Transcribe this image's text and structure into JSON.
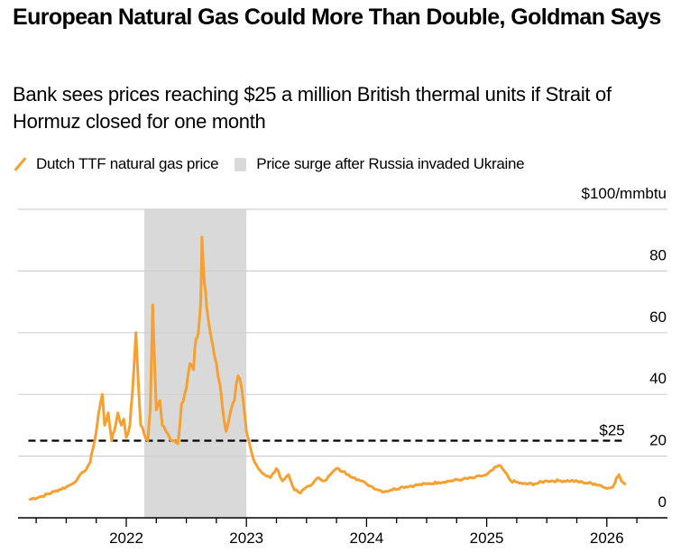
{
  "header": {
    "title": "European Natural Gas Could More Than Double, Goldman Says",
    "subtitle": "Bank sees prices reaching $25 a million British thermal units if Strait of Hormuz closed for one month"
  },
  "legend": {
    "items": [
      {
        "label": "Dutch TTF natural gas price",
        "icon": "orange-line-icon",
        "color": "#f5a030"
      },
      {
        "label": "Price surge after Russia invaded Ukraine",
        "icon": "gray-box-icon",
        "color": "#d9d9d9"
      }
    ]
  },
  "chart_data": {
    "type": "line",
    "title": "European Natural Gas Could More Than Double, Goldman Says",
    "subtitle": "Bank sees prices reaching $25 a million British thermal units if Strait of Hormuz closed for one month",
    "xlabel": "",
    "ylabel": "$/mmbtu",
    "y_unit_label": "$100/mmbtu",
    "xlim": [
      2021.15,
      2026.5
    ],
    "ylim": [
      0,
      100
    ],
    "yticks": [
      0,
      20,
      40,
      60,
      80,
      100
    ],
    "ytick_labels": [
      "0",
      "20",
      "40",
      "60",
      "80",
      "$100/mmbtu"
    ],
    "xticks": [
      2022,
      2023,
      2024,
      2025,
      2026
    ],
    "xtick_labels": [
      "2022",
      "2023",
      "2024",
      "2025",
      "2026"
    ],
    "minor_xticks_per_year": 4,
    "grid": "horizontal",
    "legend_position": "top-left",
    "shaded_region": {
      "label": "Price surge after Russia invaded Ukraine",
      "x_start": 2022.15,
      "x_end": 2023.0,
      "color": "#d9d9d9"
    },
    "reference_line": {
      "label": "$25",
      "value": 25,
      "x_start": 2021.2,
      "x_end": 2026.15,
      "style": "dashed",
      "color": "#000000"
    },
    "series": [
      {
        "name": "Dutch TTF natural gas price",
        "color": "#f5a030",
        "x": [
          2021.2,
          2021.3,
          2021.4,
          2021.5,
          2021.55,
          2021.6,
          2021.65,
          2021.7,
          2021.72,
          2021.75,
          2021.77,
          2021.8,
          2021.82,
          2021.85,
          2021.88,
          2021.9,
          2021.93,
          2021.96,
          2021.98,
          2022.0,
          2022.03,
          2022.05,
          2022.08,
          2022.12,
          2022.15,
          2022.18,
          2022.2,
          2022.22,
          2022.25,
          2022.28,
          2022.3,
          2022.33,
          2022.36,
          2022.4,
          2022.43,
          2022.46,
          2022.5,
          2022.53,
          2022.56,
          2022.58,
          2022.6,
          2022.62,
          2022.63,
          2022.65,
          2022.67,
          2022.7,
          2022.72,
          2022.75,
          2022.78,
          2022.8,
          2022.83,
          2022.86,
          2022.9,
          2022.93,
          2022.96,
          2023.0,
          2023.05,
          2023.1,
          2023.15,
          2023.2,
          2023.25,
          2023.3,
          2023.35,
          2023.4,
          2023.45,
          2023.5,
          2023.55,
          2023.6,
          2023.65,
          2023.7,
          2023.75,
          2023.8,
          2023.85,
          2023.9,
          2023.95,
          2024.0,
          2024.05,
          2024.1,
          2024.15,
          2024.2,
          2024.3,
          2024.4,
          2024.5,
          2024.6,
          2024.7,
          2024.8,
          2024.9,
          2024.95,
          2025.0,
          2025.05,
          2025.1,
          2025.15,
          2025.2,
          2025.3,
          2025.4,
          2025.5,
          2025.6,
          2025.7,
          2025.8,
          2025.9,
          2025.95,
          2026.0,
          2026.05,
          2026.08,
          2026.1,
          2026.12,
          2026.15
        ],
        "values": [
          6,
          7,
          8.5,
          10,
          11,
          13,
          15,
          18,
          22,
          28,
          34,
          40,
          30,
          34,
          25,
          28,
          34,
          30,
          32,
          26,
          30,
          40,
          60,
          30,
          27,
          25,
          35,
          69,
          35,
          38,
          30,
          28,
          26,
          25,
          24,
          37,
          42,
          50,
          48,
          58,
          60,
          70,
          91,
          76,
          68,
          60,
          56,
          50,
          43,
          36,
          28,
          33,
          38,
          46,
          42,
          28,
          20,
          16,
          14,
          13,
          16,
          12,
          14,
          9,
          8,
          10,
          11,
          13,
          12,
          14,
          16,
          15,
          14,
          13,
          12,
          11,
          10,
          9,
          8.5,
          9,
          10,
          10.5,
          11,
          11.5,
          12,
          12.5,
          13,
          13.5,
          14,
          15.5,
          17,
          15,
          12,
          11,
          11,
          12,
          12,
          12,
          11.5,
          11,
          10.5,
          9.5,
          10,
          13,
          14,
          12,
          11
        ]
      }
    ]
  }
}
